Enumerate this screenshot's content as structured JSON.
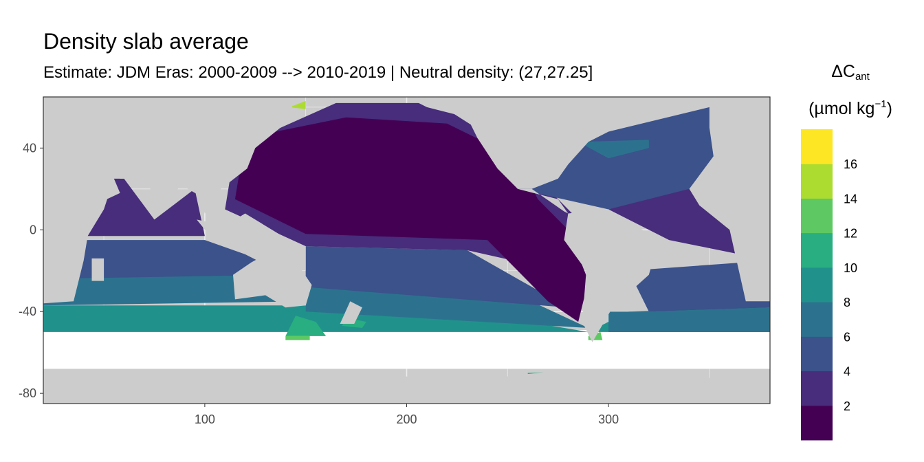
{
  "chart_data": {
    "type": "heatmap",
    "title": "Density slab average",
    "subtitle": "Estimate: JDM Eras: 2000-2009 --> 2010-2019 | Neutral density: (27,27.25]",
    "xlabel": "",
    "ylabel": "",
    "xlim": [
      20,
      380
    ],
    "ylim": [
      -85,
      65
    ],
    "x_ticks": [
      100,
      200,
      300
    ],
    "y_ticks": [
      40,
      0,
      -40,
      -80
    ],
    "grid": true,
    "legend": {
      "title_symbol": "ΔC",
      "title_subscript": "ant",
      "title_unit_prefix": "(µmol kg",
      "title_unit_superscript": "−1",
      "title_unit_suffix": ")",
      "placement": "right",
      "breaks": [
        2,
        4,
        6,
        8,
        10,
        12,
        14,
        16
      ],
      "bins": [
        {
          "from": 0,
          "to": 2,
          "color": "#440154"
        },
        {
          "from": 2,
          "to": 4,
          "color": "#472d7b"
        },
        {
          "from": 4,
          "to": 6,
          "color": "#3b528b"
        },
        {
          "from": 6,
          "to": 8,
          "color": "#2c728e"
        },
        {
          "from": 8,
          "to": 10,
          "color": "#21918c"
        },
        {
          "from": 10,
          "to": 12,
          "color": "#28ae80"
        },
        {
          "from": 12,
          "to": 14,
          "color": "#5ec962"
        },
        {
          "from": 14,
          "to": 16,
          "color": "#addc30"
        },
        {
          "from": 16,
          "to": 18,
          "color": "#fde725"
        }
      ]
    },
    "colors": {
      "land": "#cccccc",
      "no_data": "#ffffff",
      "grid": "#ebebeb",
      "panel_border": "#333333"
    }
  }
}
